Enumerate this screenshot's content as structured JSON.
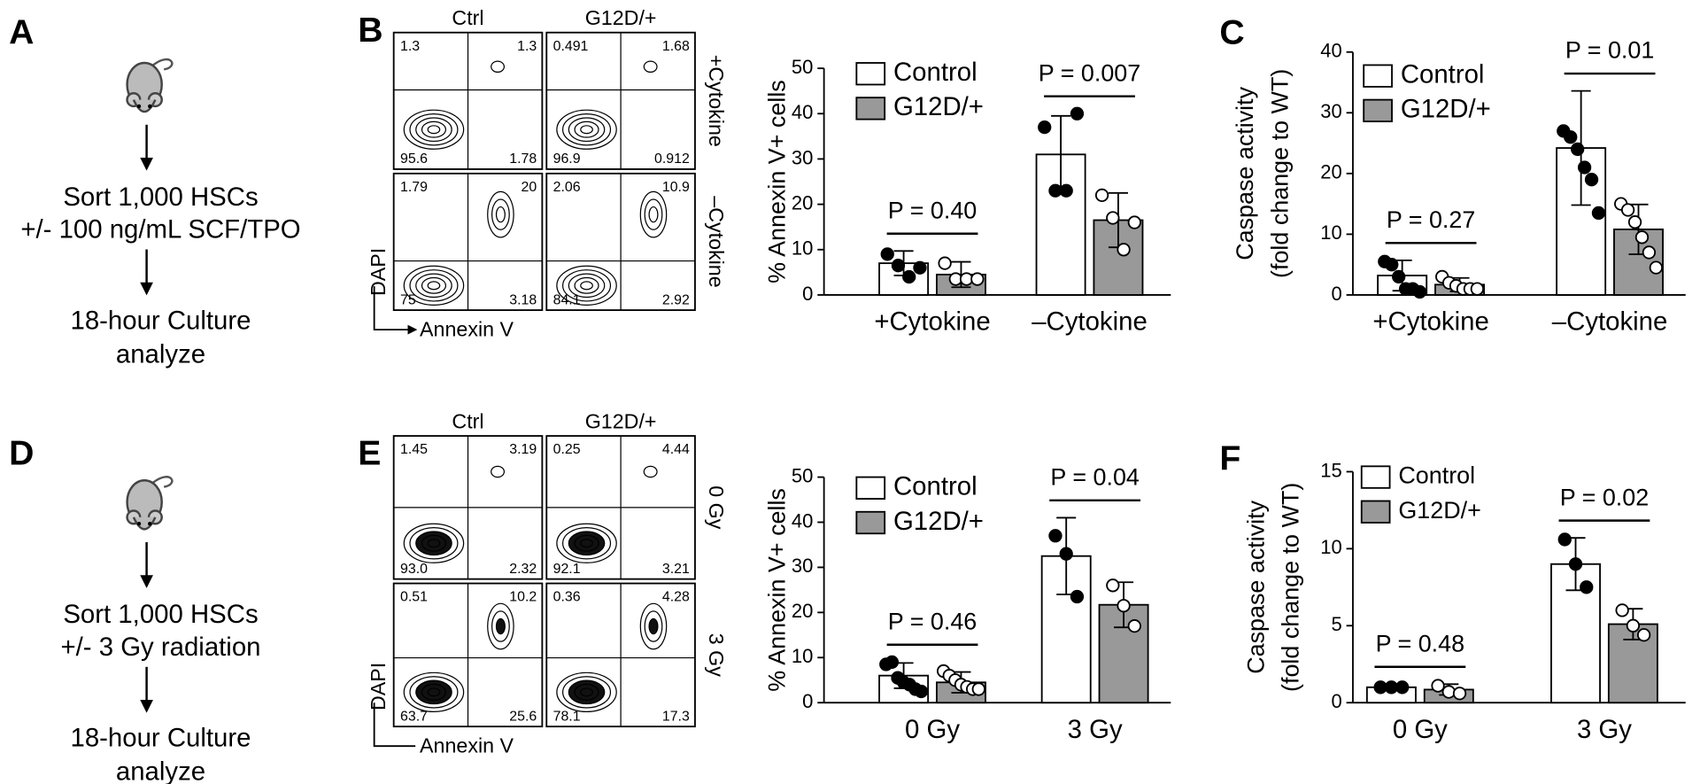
{
  "panel_labels": [
    "A",
    "B",
    "C",
    "D",
    "E",
    "F"
  ],
  "protocols": [
    {
      "steps": [
        "Sort 1,000 HSCs",
        "+/- 100 ng/mL SCF/TPO",
        "18-hour Culture",
        "analyze"
      ]
    },
    {
      "steps": [
        "Sort 1,000 HSCs",
        "+/- 3 Gy radiation",
        "18-hour Culture",
        "analyze"
      ]
    }
  ],
  "flow_panels": [
    {
      "columns": [
        "Ctrl",
        "G12D/+"
      ],
      "rows": [
        "+Cytokine",
        "–Cytokine"
      ],
      "y_axis": "DAPI",
      "x_axis": "Annexin V",
      "quadrants": [
        [
          [
            "1.3",
            "1.3",
            "95.6",
            "1.78"
          ],
          [
            "0.491",
            "1.68",
            "96.9",
            "0.912"
          ]
        ],
        [
          [
            "1.79",
            "20",
            "75",
            "3.18"
          ],
          [
            "2.06",
            "10.9",
            "84.1",
            "2.92"
          ]
        ]
      ]
    },
    {
      "columns": [
        "Ctrl",
        "G12D/+"
      ],
      "rows": [
        "0 Gy",
        "3 Gy"
      ],
      "y_axis": "DAPI",
      "x_axis": "Annexin V",
      "quadrants": [
        [
          [
            "1.45",
            "3.19",
            "93.0",
            "2.32"
          ],
          [
            "0.25",
            "4.44",
            "92.1",
            "3.21"
          ]
        ],
        [
          [
            "0.51",
            "10.2",
            "63.7",
            "25.6"
          ],
          [
            "0.36",
            "4.28",
            "78.1",
            "17.3"
          ]
        ]
      ]
    }
  ],
  "chart_data": [
    {
      "type": "bar",
      "ylabel": [
        "% Annexin V+ cells"
      ],
      "categories": [
        "+Cytokine",
        "–Cytokine"
      ],
      "series": [
        {
          "name": "Control",
          "color": "#ffffff",
          "point_fill": "#000000",
          "values": [
            7,
            31
          ],
          "errors": [
            2.7,
            8.5
          ],
          "points": [
            [
              9,
              6.5,
              4,
              6
            ],
            [
              37,
              23,
              23,
              40
            ]
          ]
        },
        {
          "name": "G12D/+",
          "color": "#999999",
          "point_fill": "#ffffff",
          "values": [
            4.5,
            16.5
          ],
          "errors": [
            2.8,
            6
          ],
          "points": [
            [
              7,
              3.5,
              3.5,
              3.5
            ],
            [
              22,
              17,
              10,
              16
            ]
          ]
        }
      ],
      "ylim": [
        0,
        50
      ],
      "yticks": [
        0,
        10,
        20,
        30,
        40,
        50
      ],
      "p_values": [
        "P = 0.40",
        "P = 0.007"
      ],
      "legend": "upper left"
    },
    {
      "type": "bar",
      "ylabel": [
        "Caspase activity",
        "(fold change to WT)"
      ],
      "categories": [
        "+Cytokine",
        "–Cytokine"
      ],
      "series": [
        {
          "name": "Control",
          "color": "#ffffff",
          "point_fill": "#000000",
          "values": [
            3.2,
            24.2
          ],
          "errors": [
            2.5,
            9.4
          ],
          "points": [
            [
              5.5,
              5,
              3,
              1,
              1,
              0.5
            ],
            [
              27,
              26,
              24,
              21,
              19,
              13.5
            ]
          ]
        },
        {
          "name": "G12D/+",
          "color": "#999999",
          "point_fill": "#ffffff",
          "values": [
            1.7,
            10.8
          ],
          "errors": [
            1.1,
            4.1
          ],
          "points": [
            [
              3,
              2,
              1.5,
              1,
              1,
              1
            ],
            [
              15,
              14,
              12,
              9.5,
              7,
              4.5
            ]
          ]
        }
      ],
      "ylim": [
        0,
        40
      ],
      "yticks": [
        0,
        10,
        20,
        30,
        40
      ],
      "p_values": [
        "P = 0.27",
        "P = 0.01"
      ],
      "legend": "upper left"
    },
    {
      "type": "bar",
      "ylabel": [
        "% Annexin V+ cells"
      ],
      "categories": [
        "0 Gy",
        "3 Gy"
      ],
      "series": [
        {
          "name": "Control",
          "color": "#ffffff",
          "point_fill": "#000000",
          "values": [
            6,
            32.5
          ],
          "errors": [
            2.8,
            8.5
          ],
          "points": [
            [
              8.5,
              9,
              5.5,
              4.5,
              4,
              3,
              2.5
            ],
            [
              37,
              33,
              23.5
            ]
          ]
        },
        {
          "name": "G12D/+",
          "color": "#999999",
          "point_fill": "#ffffff",
          "values": [
            4.5,
            21.7
          ],
          "errors": [
            2.3,
            5
          ],
          "points": [
            [
              7,
              6,
              5,
              4,
              3.5,
              3,
              3
            ],
            [
              26,
              21.5,
              17
            ]
          ]
        }
      ],
      "ylim": [
        0,
        50
      ],
      "yticks": [
        0,
        10,
        20,
        30,
        40,
        50
      ],
      "p_values": [
        "P = 0.46",
        "P = 0.04"
      ],
      "legend": "upper left"
    },
    {
      "type": "bar",
      "ylabel": [
        "Caspase activity",
        "(fold change to WT)"
      ],
      "categories": [
        "0 Gy",
        "3 Gy"
      ],
      "series": [
        {
          "name": "Control",
          "color": "#ffffff",
          "point_fill": "#000000",
          "values": [
            1.0,
            9.0
          ],
          "errors": [
            0.05,
            1.7
          ],
          "points": [
            [
              1,
              1,
              1
            ],
            [
              10.6,
              9,
              7.5
            ]
          ]
        },
        {
          "name": "G12D/+",
          "color": "#999999",
          "point_fill": "#ffffff",
          "values": [
            0.85,
            5.1
          ],
          "errors": [
            0.35,
            1.0
          ],
          "points": [
            [
              1.1,
              0.7,
              0.6
            ],
            [
              6,
              5,
              4.4
            ]
          ]
        }
      ],
      "ylim": [
        0,
        15
      ],
      "yticks": [
        0,
        5,
        10,
        15
      ],
      "p_values": [
        "P = 0.48",
        "P = 0.02"
      ],
      "legend": "upper left"
    }
  ]
}
